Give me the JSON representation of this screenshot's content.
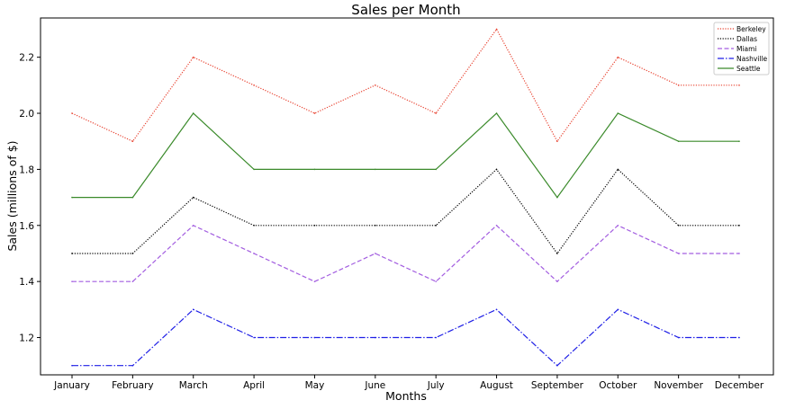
{
  "chart_data": {
    "type": "line",
    "title": "Sales per Month",
    "xlabel": "Months",
    "ylabel": "Sales (millions of $)",
    "categories": [
      "January",
      "February",
      "March",
      "April",
      "May",
      "June",
      "July",
      "August",
      "September",
      "October",
      "November",
      "December"
    ],
    "ylim": [
      1.067,
      2.34
    ],
    "yticks": [
      "1.2",
      "1.4",
      "1.6",
      "1.8",
      "2.0",
      "2.2"
    ],
    "legend_position": "top-right",
    "grid": false,
    "series": [
      {
        "name": "Berkeley",
        "color": "#e8412f",
        "style": "dotted",
        "values": [
          2.0,
          1.9,
          2.2,
          2.1,
          2.0,
          2.1,
          2.0,
          2.3,
          1.9,
          2.2,
          2.1,
          2.1
        ]
      },
      {
        "name": "Dallas",
        "color": "#000000",
        "style": "dotted",
        "values": [
          1.5,
          1.5,
          1.7,
          1.6,
          1.6,
          1.6,
          1.6,
          1.8,
          1.5,
          1.8,
          1.6,
          1.6
        ]
      },
      {
        "name": "Miami",
        "color": "#a35ee0",
        "style": "dashed",
        "values": [
          1.4,
          1.4,
          1.6,
          1.5,
          1.4,
          1.5,
          1.4,
          1.6,
          1.4,
          1.6,
          1.5,
          1.5
        ]
      },
      {
        "name": "Nashville",
        "color": "#1f1fe6",
        "style": "dashdot",
        "values": [
          1.1,
          1.1,
          1.3,
          1.2,
          1.2,
          1.2,
          1.2,
          1.3,
          1.1,
          1.3,
          1.2,
          1.2
        ]
      },
      {
        "name": "Seattle",
        "color": "#3a8a2a",
        "style": "solid",
        "values": [
          1.7,
          1.7,
          2.0,
          1.8,
          1.8,
          1.8,
          1.8,
          2.0,
          1.7,
          2.0,
          1.9,
          1.9
        ]
      }
    ]
  }
}
